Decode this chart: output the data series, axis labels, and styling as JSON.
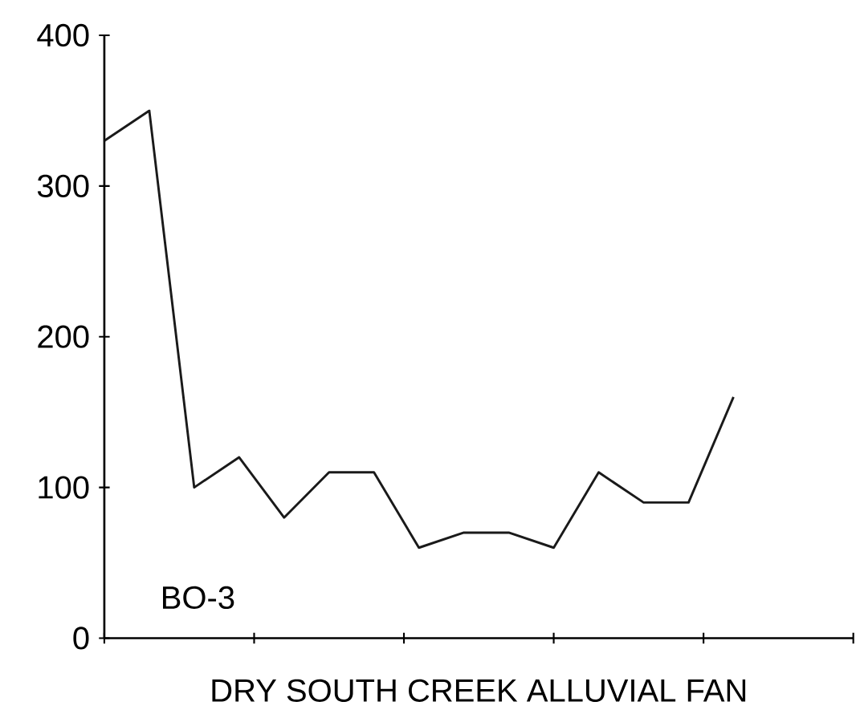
{
  "chart_data": {
    "type": "line",
    "xlabel": "DRY SOUTH CREEK ALLUVIAL FAN",
    "annotations": [
      "BO-3"
    ],
    "categories": [
      null,
      null,
      null,
      null,
      null,
      null,
      null,
      null,
      null,
      null,
      null,
      null,
      null,
      null,
      null
    ],
    "series": [
      {
        "color": "#1a1a1a",
        "values": [
          330,
          350,
          100,
          120,
          80,
          110,
          110,
          60,
          70,
          70,
          60,
          110,
          90,
          90,
          160
        ]
      }
    ],
    "ylim": [
      0,
      400
    ],
    "yticks": [
      0,
      100,
      200,
      300,
      400
    ],
    "tick_labels": "y",
    "grid": false,
    "marker": "none",
    "line_style": "solid"
  }
}
